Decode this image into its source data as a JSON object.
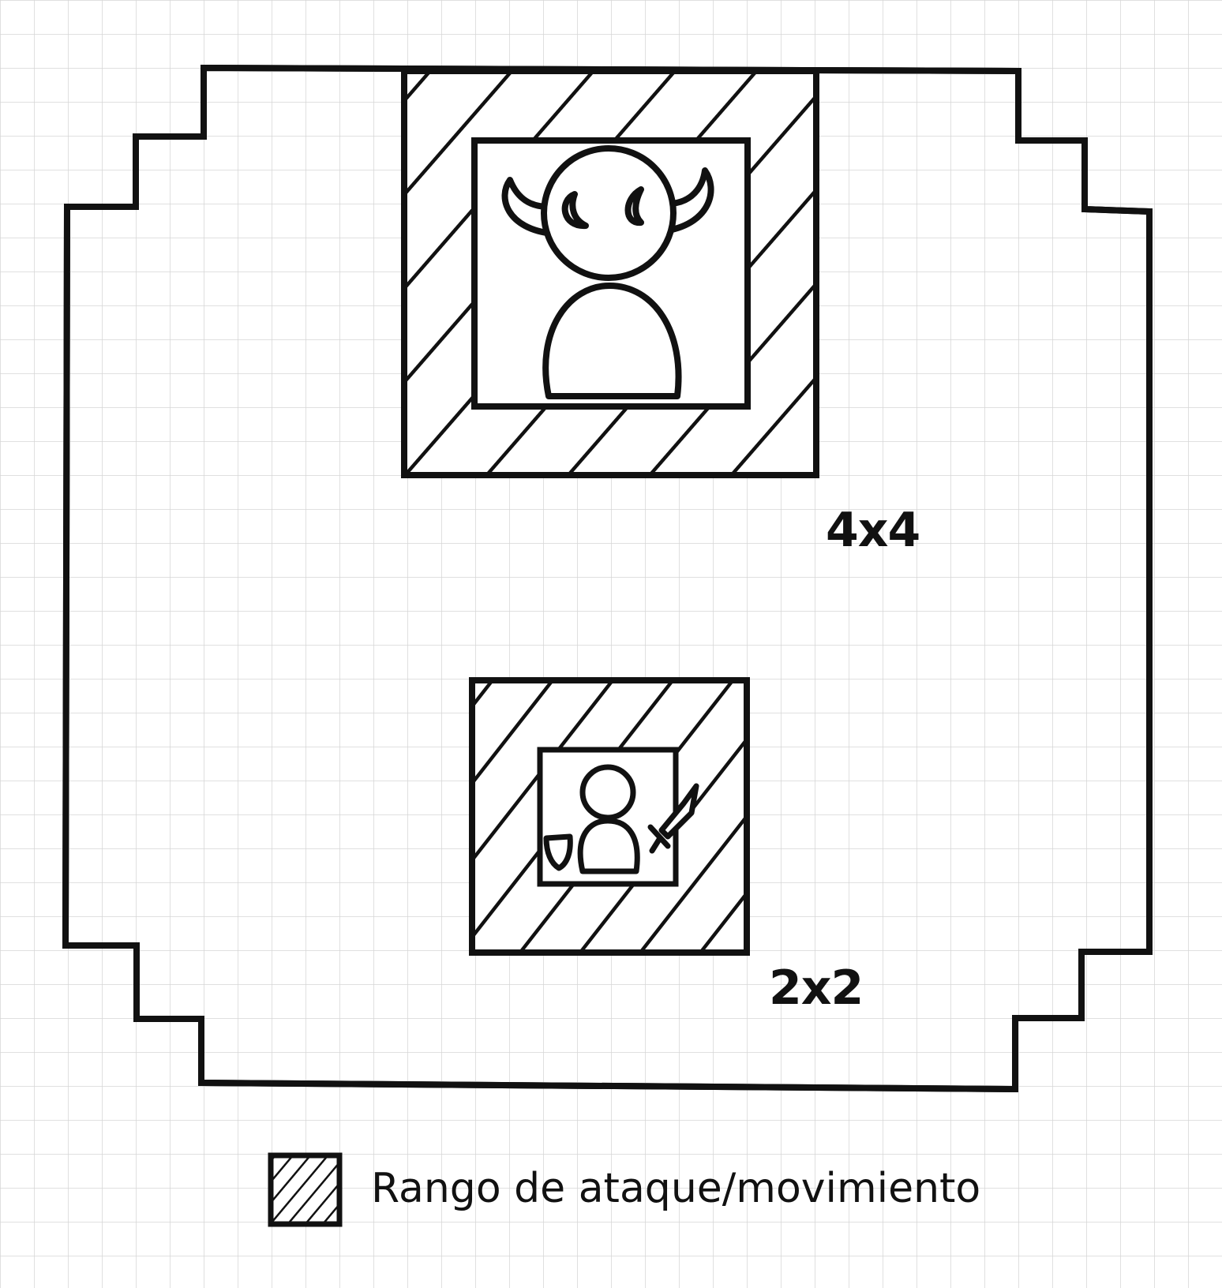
{
  "board": {
    "cell_size": "grid-square",
    "line_color": "#111111",
    "grid_color": "#d6d6d6",
    "background": "#ffffff"
  },
  "units": [
    {
      "id": "boss",
      "icon": "horned-demon-icon",
      "size_label": "4x4"
    },
    {
      "id": "hero",
      "icon": "knight-with-sword-and-shield-icon",
      "size_label": "2x2"
    }
  ],
  "legend": {
    "swatch_icon": "hatched-square-icon",
    "label": "Rango de ataque/movimiento"
  }
}
